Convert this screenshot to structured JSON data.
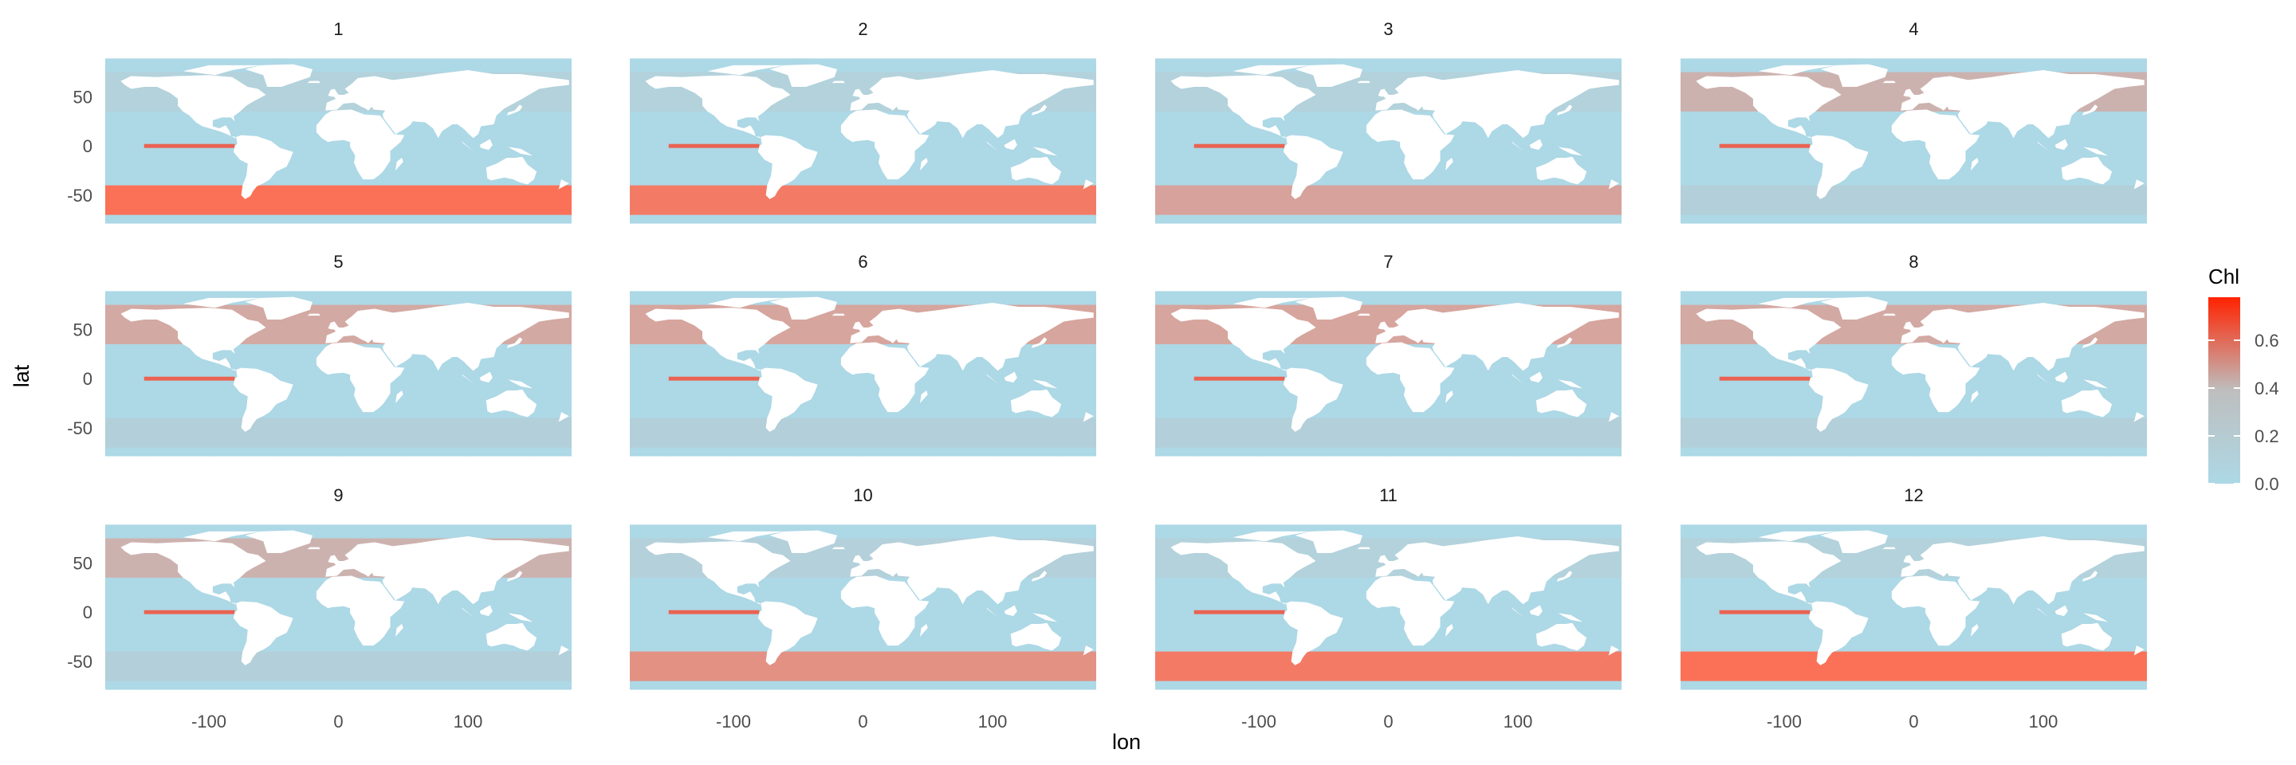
{
  "chart_data": {
    "type": "heatmap",
    "description_free": true,
    "xlabel": "lon",
    "ylabel": "lat",
    "facets": [
      "1",
      "2",
      "3",
      "4",
      "5",
      "6",
      "7",
      "8",
      "9",
      "10",
      "11",
      "12"
    ],
    "x_ticks": [
      -100,
      0,
      100
    ],
    "y_ticks": [
      50,
      0,
      -50
    ],
    "xlim": [
      -180,
      180
    ],
    "ylim": [
      -80,
      90
    ],
    "grid": true,
    "legend": {
      "title": "Chl",
      "placement": "right",
      "ticks": [
        "0.0",
        "0.2",
        "0.4",
        "0.6"
      ],
      "range": [
        0,
        0.78
      ],
      "colors": {
        "low": "#add8e6",
        "mid": "#bebebe",
        "high": "#ff2200"
      }
    },
    "land_color": "#ffffff",
    "ocean_color": "#add8e6"
  }
}
